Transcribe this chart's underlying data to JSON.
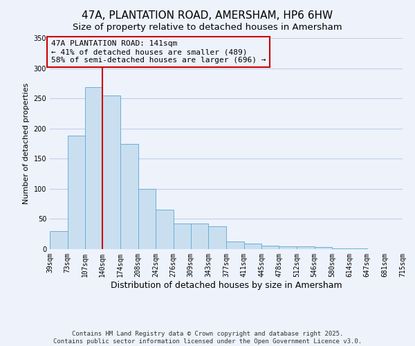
{
  "title": "47A, PLANTATION ROAD, AMERSHAM, HP6 6HW",
  "subtitle": "Size of property relative to detached houses in Amersham",
  "xlabel": "Distribution of detached houses by size in Amersham",
  "ylabel": "Number of detached properties",
  "bar_edges": [
    39,
    73,
    107,
    140,
    174,
    208,
    242,
    276,
    309,
    343,
    377,
    411,
    445,
    478,
    512,
    546,
    580,
    614,
    647,
    681,
    715
  ],
  "bar_heights": [
    30,
    188,
    268,
    255,
    175,
    100,
    65,
    42,
    42,
    38,
    13,
    9,
    6,
    5,
    5,
    3,
    1,
    1,
    0,
    0
  ],
  "bar_color": "#c9dff0",
  "bar_edgecolor": "#6baed6",
  "vline_x": 140,
  "vline_color": "#cc0000",
  "ylim": [
    0,
    350
  ],
  "yticks": [
    0,
    50,
    100,
    150,
    200,
    250,
    300,
    350
  ],
  "annotation_title": "47A PLANTATION ROAD: 141sqm",
  "annotation_line1": "← 41% of detached houses are smaller (489)",
  "annotation_line2": "58% of semi-detached houses are larger (696) →",
  "annotation_box_color": "#cc0000",
  "footer_line1": "Contains HM Land Registry data © Crown copyright and database right 2025.",
  "footer_line2": "Contains public sector information licensed under the Open Government Licence v3.0.",
  "background_color": "#eef2fb",
  "grid_color": "#c0cfe8",
  "tick_labels": [
    "39sqm",
    "73sqm",
    "107sqm",
    "140sqm",
    "174sqm",
    "208sqm",
    "242sqm",
    "276sqm",
    "309sqm",
    "343sqm",
    "377sqm",
    "411sqm",
    "445sqm",
    "478sqm",
    "512sqm",
    "546sqm",
    "580sqm",
    "614sqm",
    "647sqm",
    "681sqm",
    "715sqm"
  ],
  "title_fontsize": 11,
  "subtitle_fontsize": 9.5,
  "xlabel_fontsize": 9,
  "ylabel_fontsize": 8,
  "tick_fontsize": 7,
  "annotation_fontsize": 8,
  "footer_fontsize": 6.5
}
